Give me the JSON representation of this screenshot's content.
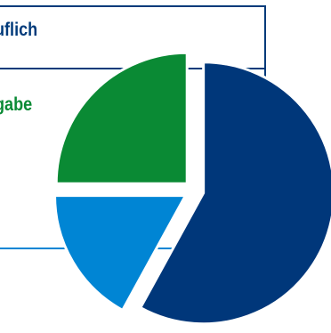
{
  "legend": {
    "labels": [
      {
        "text": "uflich",
        "color": "#003a7a"
      },
      {
        "text": "gabe",
        "color": "#0a8a34"
      }
    ]
  },
  "chart_data": {
    "type": "pie",
    "exploded": true,
    "slices": [
      {
        "value": 58,
        "color": "#00377a"
      },
      {
        "value": 17,
        "color": "#0085d4"
      },
      {
        "value": 25,
        "color": "#0a8a34"
      }
    ]
  }
}
